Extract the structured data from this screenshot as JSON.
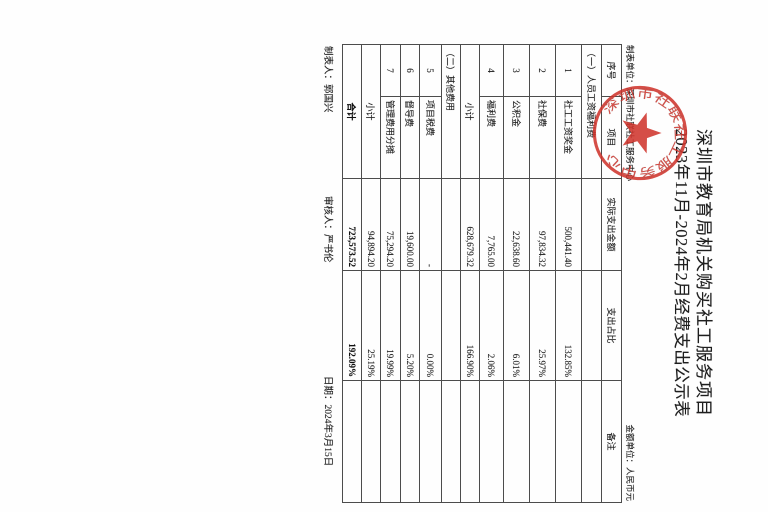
{
  "page": {
    "title_line1": "深圳市教育局机关购买社工服务项目",
    "title_line2": "2023年11月-2024年2月经费支出公示表",
    "unit_left": "制表单位：深圳市社联社工服务中心",
    "unit_right": "金额单位：人民币元",
    "footer": {
      "preparer": "制表人：郭国兴",
      "reviewer": "审核人：严书伦",
      "date": "日期：2024年3月15日"
    }
  },
  "stamp": {
    "text": "深圳市社联社工服务中心",
    "color": "#d0342c"
  },
  "table": {
    "headers": [
      "序号",
      "项目",
      "实际支出金额",
      "支出占比",
      "备注"
    ],
    "rows": [
      {
        "type": "section",
        "label": "（一）人员工资福利费",
        "amount": "",
        "ratio": "",
        "note": ""
      },
      {
        "type": "data",
        "no": "1",
        "item": "社工工资奖金",
        "amount": "500,441.40",
        "ratio": "132.85%",
        "note": ""
      },
      {
        "type": "data",
        "no": "2",
        "item": "社保费",
        "amount": "97,834.32",
        "ratio": "25.97%",
        "note": ""
      },
      {
        "type": "data",
        "no": "3",
        "item": "公积金",
        "amount": "22,638.60",
        "ratio": "6.01%",
        "note": ""
      },
      {
        "type": "data",
        "no": "4",
        "item": "福利费",
        "amount": "7,765.00",
        "ratio": "2.06%",
        "note": ""
      },
      {
        "type": "subtotal",
        "label": "小计",
        "amount": "628,679.32",
        "ratio": "166.90%",
        "note": ""
      },
      {
        "type": "section",
        "label": "（二）其他费用",
        "amount": "",
        "ratio": "",
        "note": ""
      },
      {
        "type": "data",
        "no": "5",
        "item": "项目税费",
        "amount": "-",
        "ratio": "0.00%",
        "note": ""
      },
      {
        "type": "data",
        "no": "6",
        "item": "督导费",
        "amount": "19,600.00",
        "ratio": "5.20%",
        "note": ""
      },
      {
        "type": "data",
        "no": "7",
        "item": "管理费用分摊",
        "amount": "75,294.20",
        "ratio": "19.99%",
        "note": ""
      },
      {
        "type": "subtotal",
        "label": "小计",
        "amount": "94,894.20",
        "ratio": "25.19%",
        "note": ""
      },
      {
        "type": "total",
        "label": "合计",
        "amount": "723,573.52",
        "ratio": "192.09%",
        "note": ""
      }
    ]
  }
}
